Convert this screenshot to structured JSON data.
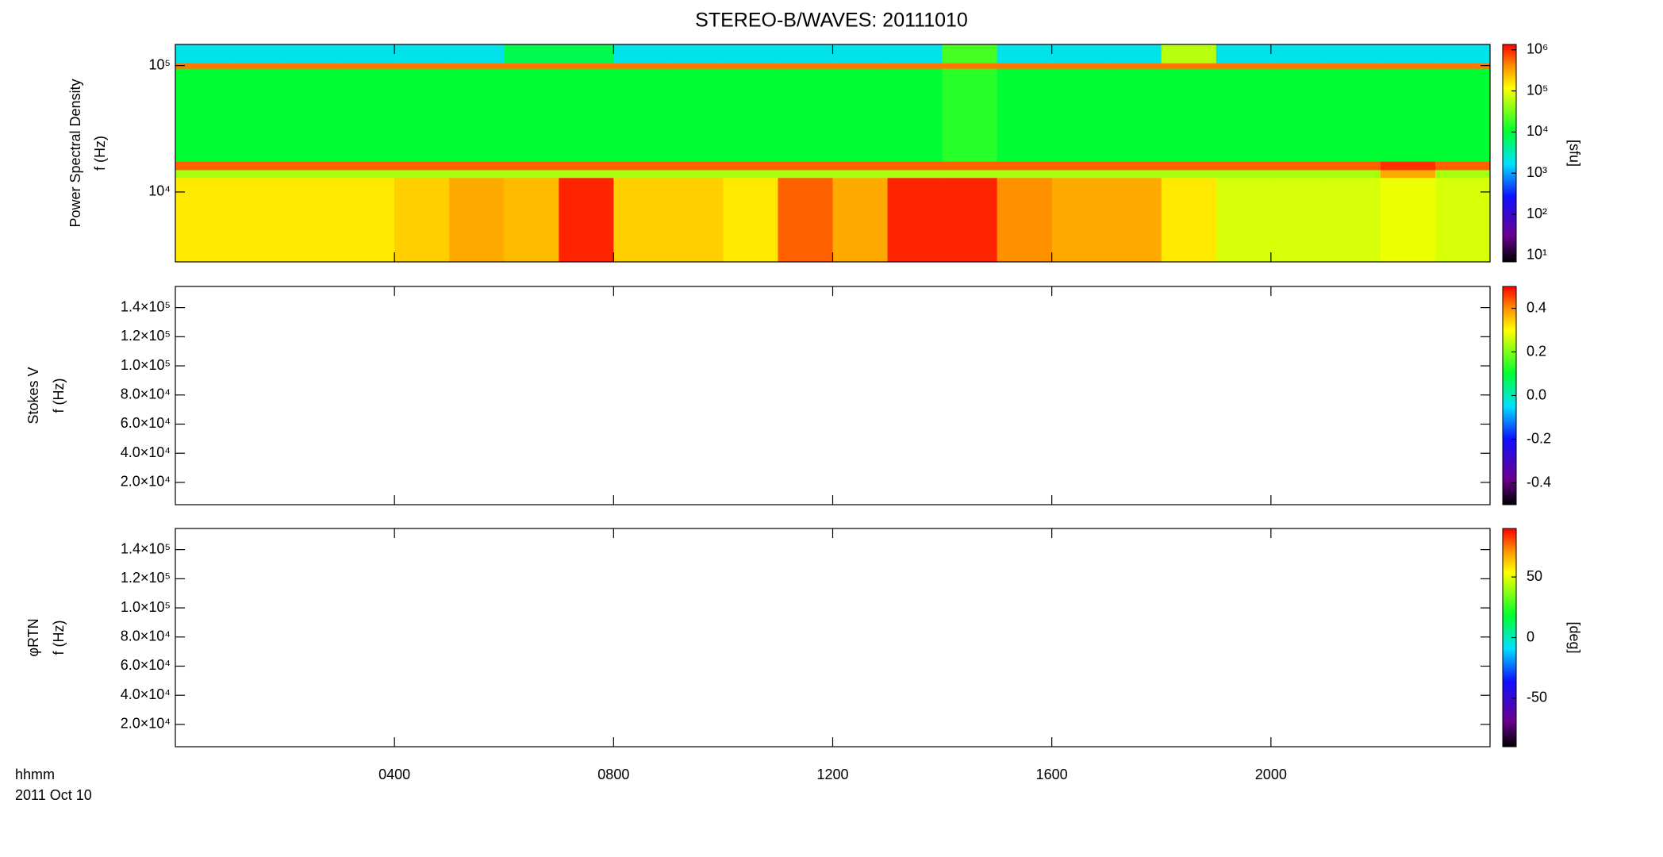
{
  "chart_data": [
    {
      "type": "heatmap",
      "title": "STEREO-B/WAVES: 20111010",
      "y_label": [
        "Power Spectral Density",
        "f (Hz)"
      ],
      "x": [
        0,
        1,
        2,
        3,
        4,
        5,
        6,
        7,
        8,
        9,
        10,
        11,
        12,
        13,
        14,
        15,
        16,
        17,
        18,
        19,
        20,
        21,
        22,
        23,
        24
      ],
      "y": [
        2800,
        13000,
        15000,
        17500,
        95000,
        105000,
        147000
      ],
      "z": [
        [
          150000,
          150000,
          150000,
          150000,
          200000,
          300000,
          250000,
          1000000,
          200000,
          200000,
          150000,
          600000,
          300000,
          1000000,
          1000000,
          400000,
          300000,
          300000,
          150000,
          80000,
          80000,
          80000,
          100000,
          80000
        ],
        [
          50000,
          50000,
          50000,
          50000,
          50000,
          50000,
          50000,
          50000,
          50000,
          50000,
          50000,
          50000,
          50000,
          50000,
          50000,
          50000,
          50000,
          50000,
          50000,
          50000,
          50000,
          50000,
          300000,
          50000
        ],
        [
          600000,
          600000,
          600000,
          600000,
          600000,
          600000,
          600000,
          600000,
          600000,
          600000,
          600000,
          600000,
          600000,
          600000,
          600000,
          600000,
          600000,
          600000,
          600000,
          600000,
          600000,
          600000,
          900000,
          600000
        ],
        [
          10000,
          10000,
          10000,
          10000,
          10000,
          10000,
          10000,
          10000,
          10000,
          10000,
          10000,
          10000,
          10000,
          10000,
          15000,
          10000,
          10000,
          10000,
          10000,
          10000,
          10000,
          10000,
          10000,
          10000
        ],
        [
          500000,
          500000,
          500000,
          500000,
          500000,
          500000,
          500000,
          500000,
          500000,
          500000,
          500000,
          500000,
          500000,
          500000,
          500000,
          500000,
          500000,
          500000,
          500000,
          500000,
          500000,
          500000,
          500000,
          500000
        ],
        [
          2000,
          2000,
          2000,
          2000,
          2000,
          2000,
          8000,
          8000,
          2000,
          2000,
          2000,
          2000,
          2000,
          2000,
          20000,
          2000,
          2000,
          2000,
          60000,
          2000,
          2000,
          2000,
          2000,
          2000
        ]
      ],
      "xlim": [
        0,
        24
      ],
      "ylim": [
        2800,
        147000
      ],
      "log_y": true,
      "yticks": [
        {
          "value": 10000,
          "label": "10⁴"
        },
        {
          "value": 100000,
          "label": "10⁵"
        }
      ],
      "zlim": [
        7,
        1350000
      ],
      "log_z": true,
      "colormap": "rainbow",
      "z_label": "[sfu]",
      "zticks": [
        {
          "value": 10,
          "label": "10¹"
        },
        {
          "value": 100,
          "label": "10²"
        },
        {
          "value": 1000,
          "label": "10³"
        },
        {
          "value": 10000,
          "label": "10⁴"
        },
        {
          "value": 100000,
          "label": "10⁵"
        },
        {
          "value": 1000000,
          "label": "10⁶"
        }
      ]
    },
    {
      "type": "heatmap",
      "y_label": [
        "Stokes V",
        "f (Hz)"
      ],
      "xlim": [
        0,
        24
      ],
      "ylim": [
        4700,
        154500
      ],
      "yticks": [
        {
          "value": 20000,
          "label": "2.0×10⁴"
        },
        {
          "value": 40000,
          "label": "4.0×10⁴"
        },
        {
          "value": 60000,
          "label": "6.0×10⁴"
        },
        {
          "value": 80000,
          "label": "8.0×10⁴"
        },
        {
          "value": 100000,
          "label": "1.0×10⁵"
        },
        {
          "value": 120000,
          "label": "1.2×10⁵"
        },
        {
          "value": 140000,
          "label": "1.4×10⁵"
        }
      ],
      "zlim": [
        -0.5,
        0.5
      ],
      "colormap": "rainbow",
      "zticks": [
        -0.4,
        -0.2,
        {
          "value": 0,
          "label": "0.0"
        },
        0.2,
        0.4
      ]
    },
    {
      "type": "heatmap",
      "y_label": [
        "φRTN",
        "f (Hz)"
      ],
      "xlim": [
        0,
        24
      ],
      "ylim": [
        4700,
        154500
      ],
      "yticks": [
        {
          "value": 20000,
          "label": "2.0×10⁴"
        },
        {
          "value": 40000,
          "label": "4.0×10⁴"
        },
        {
          "value": 60000,
          "label": "6.0×10⁴"
        },
        {
          "value": 80000,
          "label": "8.0×10⁴"
        },
        {
          "value": 100000,
          "label": "1.0×10⁵"
        },
        {
          "value": 120000,
          "label": "1.2×10⁵"
        },
        {
          "value": 140000,
          "label": "1.4×10⁵"
        }
      ],
      "zlim": [
        -90,
        90
      ],
      "colormap": "rainbow",
      "z_label": "[deg]",
      "zticks": [
        -50,
        0,
        50
      ],
      "x_label": "hhmm",
      "date": "2011 Oct 10",
      "xticks": [
        {
          "value": 4,
          "label": "0400"
        },
        {
          "value": 8,
          "label": "0800"
        },
        {
          "value": 12,
          "label": "1200"
        },
        {
          "value": 16,
          "label": "1600"
        },
        {
          "value": 20,
          "label": "2000"
        }
      ]
    }
  ]
}
